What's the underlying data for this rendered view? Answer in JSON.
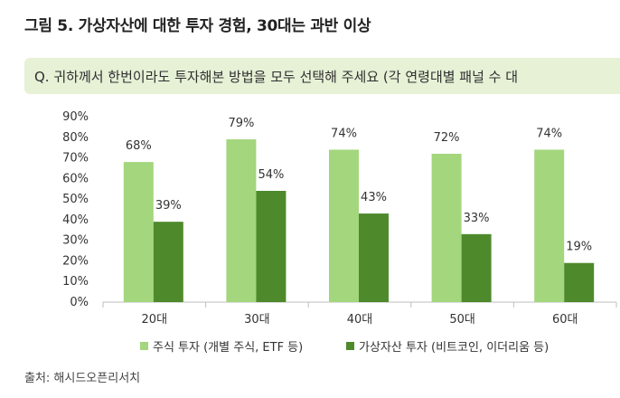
{
  "header": {
    "title": "그림 5. 가상자산에 대한 투자 경험, 30대는 과반 이상"
  },
  "question": {
    "text": "Q. 귀하께서 한번이라도 투자해본 방법을 모두 선택해 주세요 (각 연령대별 패널 수 대"
  },
  "chart_data": {
    "type": "bar",
    "categories": [
      "20대",
      "30대",
      "40대",
      "50대",
      "60대"
    ],
    "series": [
      {
        "name": "주식 투자 (개별 주식, ETF 등)",
        "values": [
          68,
          79,
          74,
          72,
          74
        ],
        "labels": [
          "68%",
          "79%",
          "74%",
          "72%",
          "74%"
        ],
        "color": "#a3d67d"
      },
      {
        "name": "가상자산 투자 (비트코인, 이더리움 등)",
        "values": [
          39,
          54,
          43,
          33,
          19
        ],
        "labels": [
          "39%",
          "54%",
          "43%",
          "33%",
          "19%"
        ],
        "color": "#4e8a2c"
      }
    ],
    "ylim": [
      0,
      90
    ],
    "yticks": [
      "0%",
      "10%",
      "20%",
      "30%",
      "40%",
      "50%",
      "60%",
      "70%",
      "80%",
      "90%"
    ],
    "grid": false,
    "legend_position": "bottom"
  },
  "footer": {
    "source": "출처: 해시드오픈리서치"
  }
}
